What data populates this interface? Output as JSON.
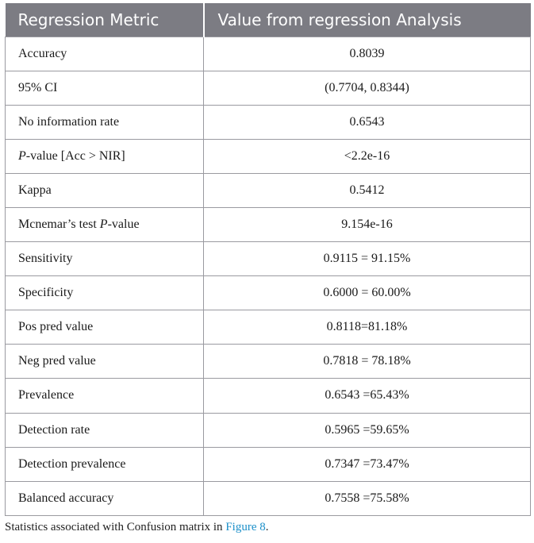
{
  "table": {
    "headers": [
      "Regression Metric",
      "Value from regression Analysis"
    ],
    "rows": [
      {
        "metric": "Accuracy",
        "value": "0.8039"
      },
      {
        "metric": "95% CI",
        "value": "(0.7704, 0.8344)"
      },
      {
        "metric": "No information rate",
        "value": "0.6543"
      },
      {
        "metric_italic": "P",
        "metric_rest": "-value [Acc > NIR]",
        "value": "<2.2e-16"
      },
      {
        "metric": "Kappa",
        "value": "0.5412"
      },
      {
        "metric_pre": "Mcnemar’s test ",
        "metric_italic": "P",
        "metric_rest": "-value",
        "value": "9.154e-16"
      },
      {
        "metric": "Sensitivity",
        "value": "0.9115 = 91.15%"
      },
      {
        "metric": "Specificity",
        "value": "0.6000 = 60.00%"
      },
      {
        "metric": "Pos pred value",
        "value": "0.8118=81.18%"
      },
      {
        "metric": "Neg pred value",
        "value": "0.7818 = 78.18%"
      },
      {
        "metric": "Prevalence",
        "value": "0.6543 =65.43%"
      },
      {
        "metric": "Detection rate",
        "value": "0.5965 =59.65%"
      },
      {
        "metric": "Detection prevalence",
        "value": "0.7347 =73.47%"
      },
      {
        "metric": "Balanced accuracy",
        "value": "0.7558 =75.58%"
      }
    ]
  },
  "caption": {
    "text": "Statistics associated with Confusion matrix in ",
    "link": "Figure 8",
    "end": "."
  }
}
